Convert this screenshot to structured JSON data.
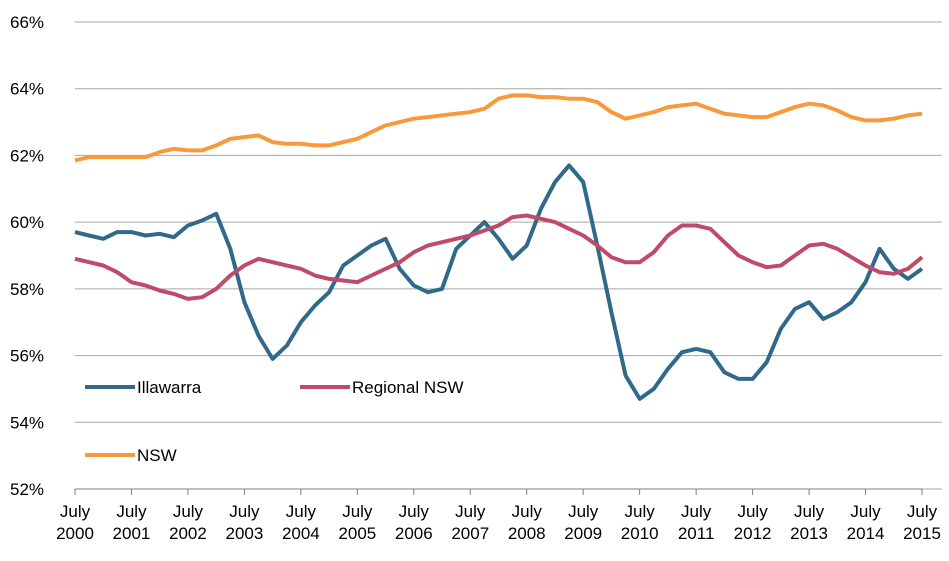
{
  "chart_data": {
    "type": "line",
    "x": [
      2000.5,
      2000.75,
      2001,
      2001.25,
      2001.5,
      2001.75,
      2002,
      2002.25,
      2002.5,
      2002.75,
      2003,
      2003.25,
      2003.5,
      2003.75,
      2004,
      2004.25,
      2004.5,
      2004.75,
      2005,
      2005.25,
      2005.5,
      2005.75,
      2006,
      2006.25,
      2006.5,
      2006.75,
      2007,
      2007.25,
      2007.5,
      2007.75,
      2008,
      2008.25,
      2008.5,
      2008.75,
      2009,
      2009.25,
      2009.5,
      2009.75,
      2010,
      2010.25,
      2010.5,
      2010.75,
      2011,
      2011.25,
      2011.5,
      2011.75,
      2012,
      2012.25,
      2012.5,
      2012.75,
      2013,
      2013.25,
      2013.5,
      2013.75,
      2014,
      2014.25,
      2014.5,
      2014.75,
      2015,
      2015.25,
      2015.5
    ],
    "series": [
      {
        "name": "Illawarra",
        "color": "#31698a",
        "values": [
          59.7,
          59.6,
          59.5,
          59.7,
          59.7,
          59.6,
          59.65,
          59.55,
          59.9,
          60.05,
          60.25,
          59.2,
          57.6,
          56.6,
          55.9,
          56.3,
          57.0,
          57.5,
          57.9,
          58.7,
          59.0,
          59.3,
          59.5,
          58.6,
          58.1,
          57.9,
          58.0,
          59.2,
          59.6,
          60.0,
          59.5,
          58.9,
          59.3,
          60.4,
          61.2,
          61.7,
          61.2,
          59.3,
          57.3,
          55.4,
          54.7,
          55.0,
          55.6,
          56.1,
          56.2,
          56.1,
          55.5,
          55.3,
          55.3,
          55.8,
          56.8,
          57.4,
          57.6,
          57.1,
          57.3,
          57.6,
          58.2,
          59.2,
          58.6,
          58.3,
          58.6
        ]
      },
      {
        "name": "Regional NSW",
        "color": "#be4b68",
        "values": [
          58.9,
          58.8,
          58.7,
          58.5,
          58.2,
          58.1,
          57.95,
          57.85,
          57.7,
          57.75,
          58.0,
          58.4,
          58.7,
          58.9,
          58.8,
          58.7,
          58.6,
          58.4,
          58.3,
          58.25,
          58.2,
          58.4,
          58.6,
          58.8,
          59.1,
          59.3,
          59.4,
          59.5,
          59.6,
          59.75,
          59.9,
          60.15,
          60.2,
          60.1,
          60.0,
          59.8,
          59.6,
          59.3,
          58.95,
          58.8,
          58.8,
          59.1,
          59.6,
          59.9,
          59.9,
          59.8,
          59.4,
          59.0,
          58.8,
          58.65,
          58.7,
          59.0,
          59.3,
          59.35,
          59.2,
          58.95,
          58.7,
          58.5,
          58.45,
          58.6,
          58.95
        ]
      },
      {
        "name": "NSW",
        "color": "#f79a3c",
        "values": [
          61.85,
          61.95,
          61.95,
          61.95,
          61.95,
          61.95,
          62.1,
          62.2,
          62.15,
          62.15,
          62.3,
          62.5,
          62.55,
          62.6,
          62.4,
          62.35,
          62.35,
          62.3,
          62.3,
          62.4,
          62.5,
          62.7,
          62.9,
          63.0,
          63.1,
          63.15,
          63.2,
          63.25,
          63.3,
          63.4,
          63.7,
          63.8,
          63.8,
          63.75,
          63.75,
          63.7,
          63.7,
          63.6,
          63.3,
          63.1,
          63.2,
          63.3,
          63.45,
          63.5,
          63.55,
          63.4,
          63.25,
          63.2,
          63.15,
          63.15,
          63.3,
          63.45,
          63.55,
          63.5,
          63.35,
          63.15,
          63.05,
          63.05,
          63.1,
          63.2,
          63.25
        ]
      }
    ],
    "xlim": [
      2000.5,
      2015.5
    ],
    "xticks": [
      {
        "value": 2000.5,
        "label": "July 2000"
      },
      {
        "value": 2001.5,
        "label": "July 2001"
      },
      {
        "value": 2002.5,
        "label": "July 2002"
      },
      {
        "value": 2003.5,
        "label": "July 2003"
      },
      {
        "value": 2004.5,
        "label": "July 2004"
      },
      {
        "value": 2005.5,
        "label": "July 2005"
      },
      {
        "value": 2006.5,
        "label": "July 2006"
      },
      {
        "value": 2007.5,
        "label": "July 2007"
      },
      {
        "value": 2008.5,
        "label": "July 2008"
      },
      {
        "value": 2009.5,
        "label": "July 2009"
      },
      {
        "value": 2010.5,
        "label": "July 2010"
      },
      {
        "value": 2011.5,
        "label": "July 2011"
      },
      {
        "value": 2012.5,
        "label": "July 2012"
      },
      {
        "value": 2013.5,
        "label": "July 2013"
      },
      {
        "value": 2014.5,
        "label": "July 2014"
      },
      {
        "value": 2015.5,
        "label": "July 2015"
      }
    ],
    "ylim": [
      52,
      66
    ],
    "yticks": [
      {
        "value": 52,
        "label": "52%"
      },
      {
        "value": 54,
        "label": "54%"
      },
      {
        "value": 56,
        "label": "56%"
      },
      {
        "value": 58,
        "label": "58%"
      },
      {
        "value": 60,
        "label": "60%"
      },
      {
        "value": 62,
        "label": "62%"
      },
      {
        "value": 64,
        "label": "64%"
      },
      {
        "value": 66,
        "label": "66%"
      }
    ],
    "grid": true,
    "legend": "lower left"
  }
}
